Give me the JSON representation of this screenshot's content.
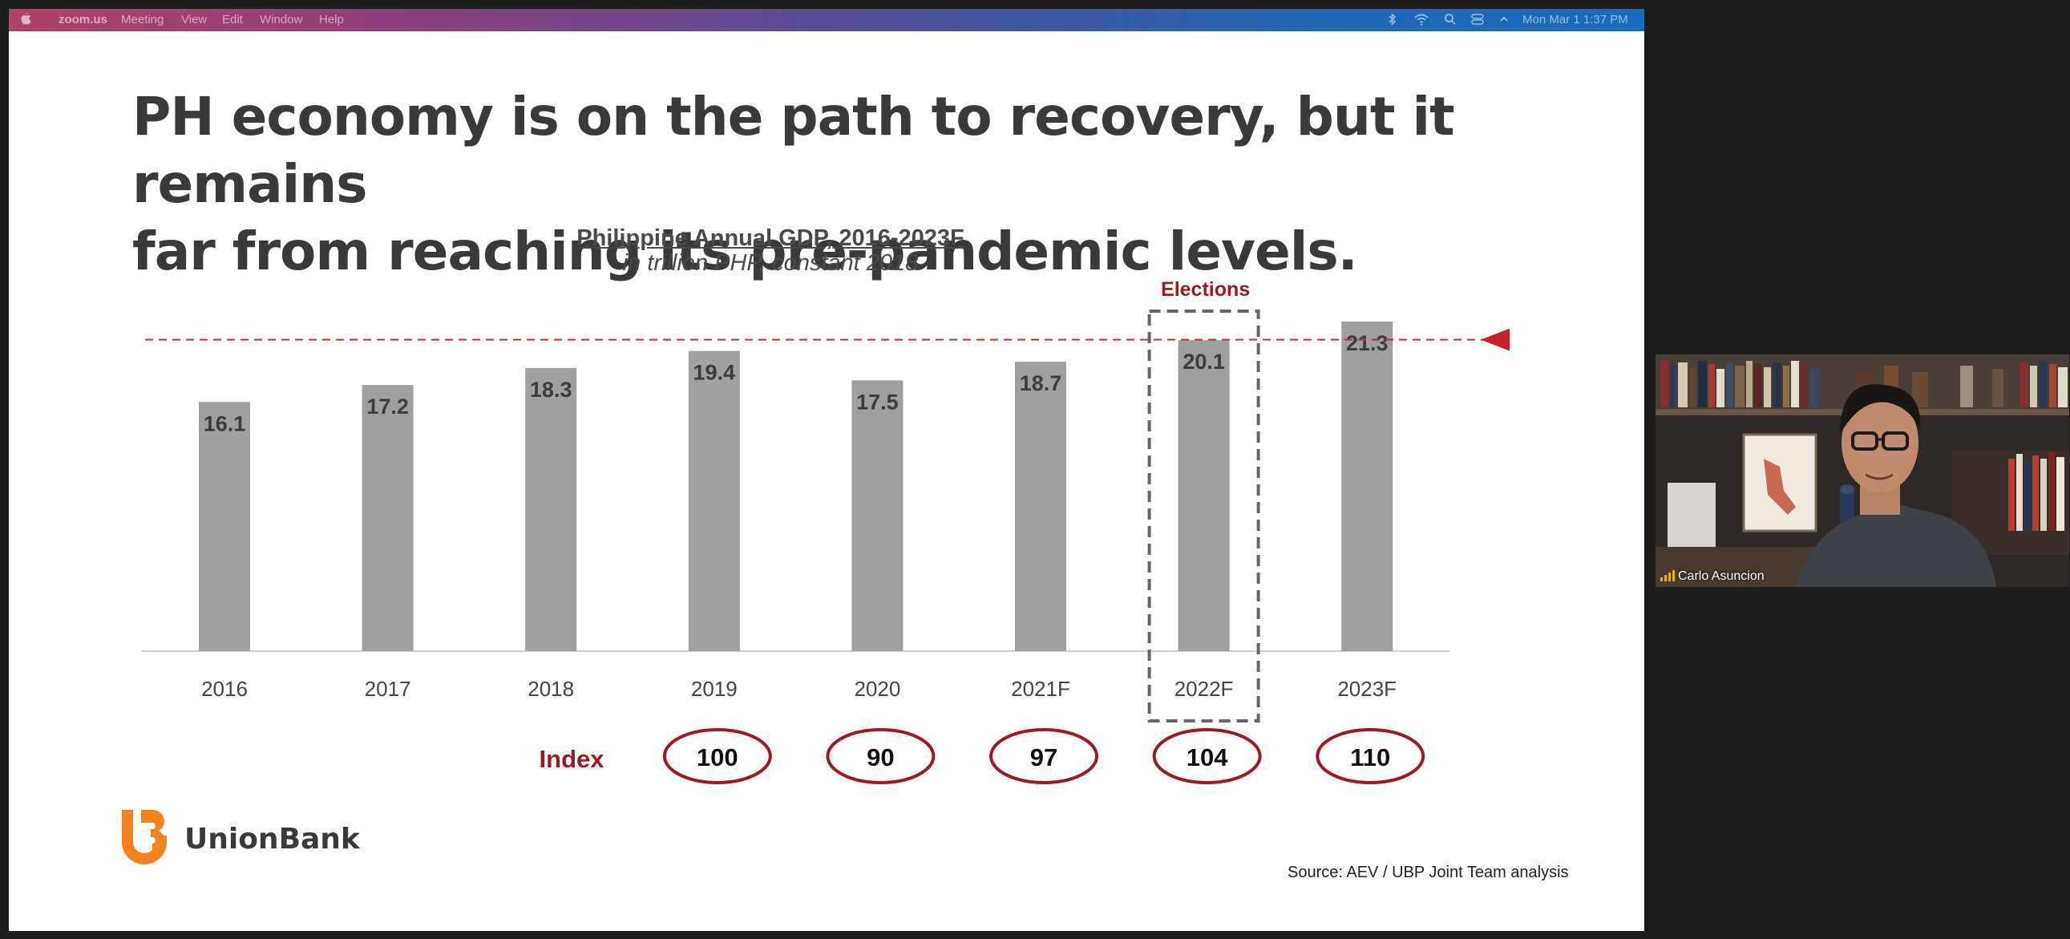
{
  "menubar": {
    "app_name": "zoom.us",
    "items": [
      "Meeting",
      "View",
      "Edit",
      "Window",
      "Help"
    ],
    "datetime": "Mon Mar 1  1:37 PM",
    "status_icons": [
      "bluetooth-icon",
      "wifi-icon",
      "search-icon",
      "control-center-icon",
      "chevron-up-icon"
    ]
  },
  "slide": {
    "title_line1": "PH economy is on the path to recovery, but it remains",
    "title_line2": "far from reaching its pre-pandemic levels.",
    "source": "Source: AEV / UBP Joint Team analysis",
    "logo_text": "UnionBank",
    "index_label": "Index",
    "elections_label": "Elections",
    "index_values": [
      {
        "year": "2019",
        "value": "100"
      },
      {
        "year": "2020",
        "value": "90"
      },
      {
        "year": "2021F",
        "value": "97"
      },
      {
        "year": "2022F",
        "value": "104"
      },
      {
        "year": "2023F",
        "value": "110"
      }
    ],
    "colors": {
      "accent_red": "#9b1b24",
      "bar_gray": "#a0a0a0",
      "title_gray": "#3a3a3a"
    }
  },
  "chart_data": {
    "type": "bar",
    "title": "Philippine Annual GDP, 2016-2023F",
    "subtitle": "in trillion PHP, constant 2018",
    "categories": [
      "2016",
      "2017",
      "2018",
      "2019",
      "2020",
      "2021F",
      "2022F",
      "2023F"
    ],
    "values": [
      16.1,
      17.2,
      18.3,
      19.4,
      17.5,
      18.7,
      20.1,
      21.3
    ],
    "data_labels": [
      "16.1",
      "17.2",
      "18.3",
      "19.4",
      "17.5",
      "18.7",
      "20.1",
      "21.3"
    ],
    "reference_line": {
      "value": 19.4,
      "style": "dashed",
      "color": "#c0303a"
    },
    "highlight_category": "2022F",
    "ylim": [
      0,
      21.3
    ],
    "grid": false,
    "legend": "none"
  },
  "video": {
    "participant_name": "Carlo Asuncion"
  }
}
